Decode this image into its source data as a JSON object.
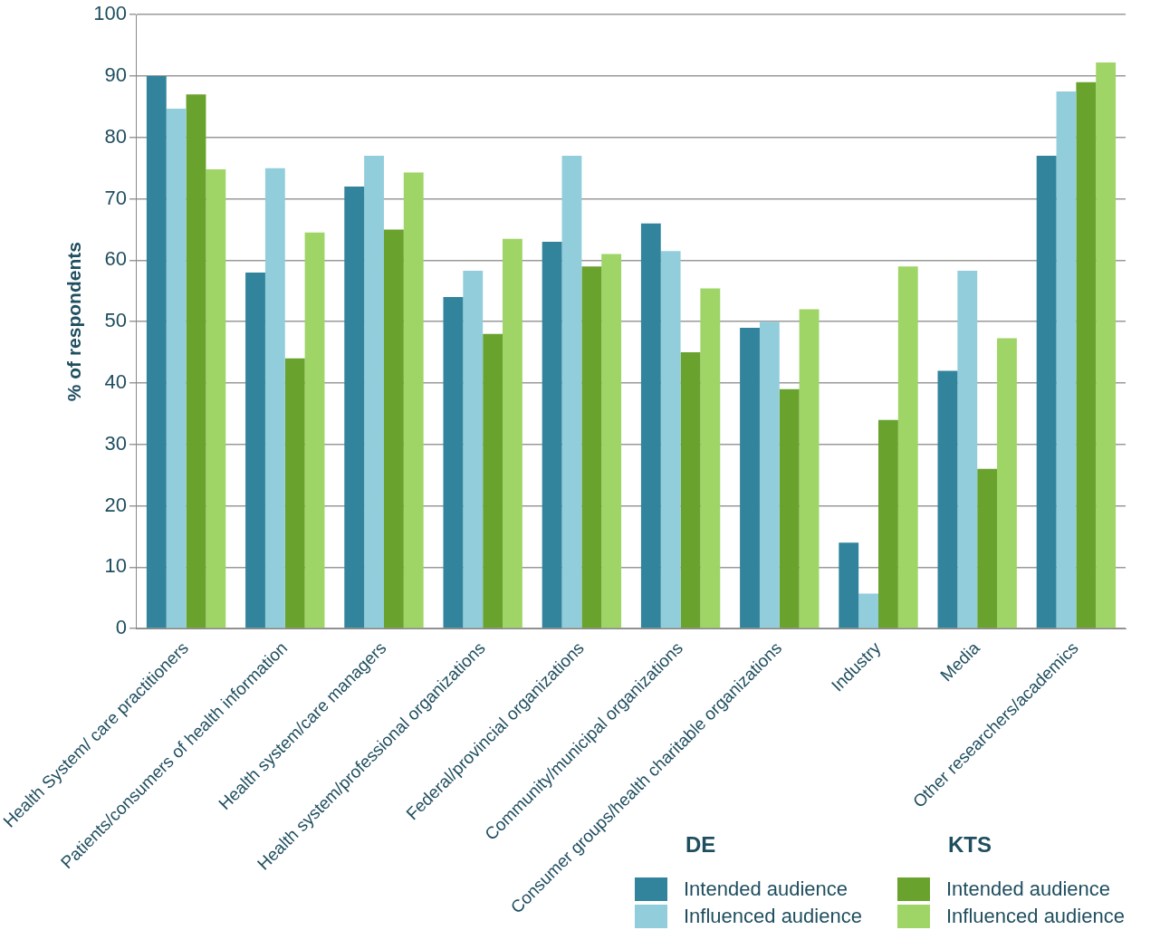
{
  "chart_data": {
    "type": "bar",
    "ylabel": "% of respondents",
    "categories": [
      "Health System/ care practitioners",
      "Patients/consumers of health information",
      "Health system/care managers",
      "Health system/professional organizations",
      "Federal/provincial organizations",
      "Community/municipal organizations",
      "Consumer groups/health charitable organizations",
      "Industry",
      "Media",
      "Other researchers/academics"
    ],
    "series": [
      {
        "name": "Intended audience",
        "color": "#31849b",
        "values": [
          90,
          58,
          72,
          54,
          63,
          66,
          49,
          14,
          42,
          77
        ]
      },
      {
        "name": "Influenced audience",
        "color": "#92cddc",
        "values": [
          84.7,
          75,
          77,
          58.3,
          77,
          61.5,
          50,
          5.7,
          58.3,
          87.5
        ]
      },
      {
        "name": "Intended audience",
        "color": "#6aa22e",
        "values": [
          87,
          44,
          65,
          48,
          59,
          45,
          39,
          34,
          26,
          89
        ]
      },
      {
        "name": "Influenced audience",
        "color": "#9fd466",
        "values": [
          74.8,
          64.5,
          74.3,
          63.5,
          61,
          55.4,
          52,
          59,
          47.3,
          92.2
        ]
      }
    ],
    "annotations": [
      "DE",
      "KTS"
    ],
    "ylim": [
      0,
      100
    ],
    "yticks": [
      0,
      10,
      20,
      30,
      40,
      50,
      60,
      70,
      80,
      90,
      100
    ],
    "grid": "y",
    "legend": "bottom right"
  }
}
